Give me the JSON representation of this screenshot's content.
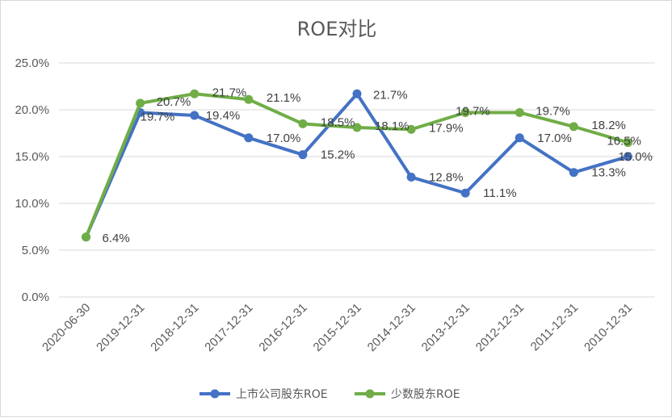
{
  "chart_data": {
    "type": "line",
    "title": "ROE对比",
    "xlabel": "",
    "ylabel": "",
    "categories": [
      "2020-06-30",
      "2019-12-31",
      "2018-12-31",
      "2017-12-31",
      "2016-12-31",
      "2015-12-31",
      "2014-12-31",
      "2013-12-31",
      "2012-12-31",
      "2011-12-31",
      "2010-12-31"
    ],
    "y_ticks": [
      "0.0%",
      "5.0%",
      "10.0%",
      "15.0%",
      "20.0%",
      "25.0%"
    ],
    "ylim": [
      0,
      25
    ],
    "grid": true,
    "legend_position": "bottom",
    "series": [
      {
        "name": "上市公司股东ROE",
        "color": "#4472c4",
        "values": [
          6.4,
          19.7,
          19.4,
          17.0,
          15.2,
          21.7,
          12.8,
          11.1,
          17.0,
          13.3,
          15.0
        ],
        "labels": [
          "",
          "19.7%",
          "19.4%",
          "17.0%",
          "15.2%",
          "21.7%",
          "12.8%",
          "11.1%",
          "17.0%",
          "13.3%",
          "15.0%"
        ]
      },
      {
        "name": "少数股东ROE",
        "color": "#70ad47",
        "values": [
          6.4,
          20.7,
          21.7,
          21.1,
          18.5,
          18.1,
          17.9,
          19.7,
          19.7,
          18.2,
          16.5
        ],
        "labels": [
          "6.4%",
          "20.7%",
          "21.7%",
          "21.1%",
          "18.5%",
          "18.1%",
          "17.9%",
          "19.7%",
          "19.7%",
          "18.2%",
          "16.5%"
        ]
      }
    ]
  }
}
